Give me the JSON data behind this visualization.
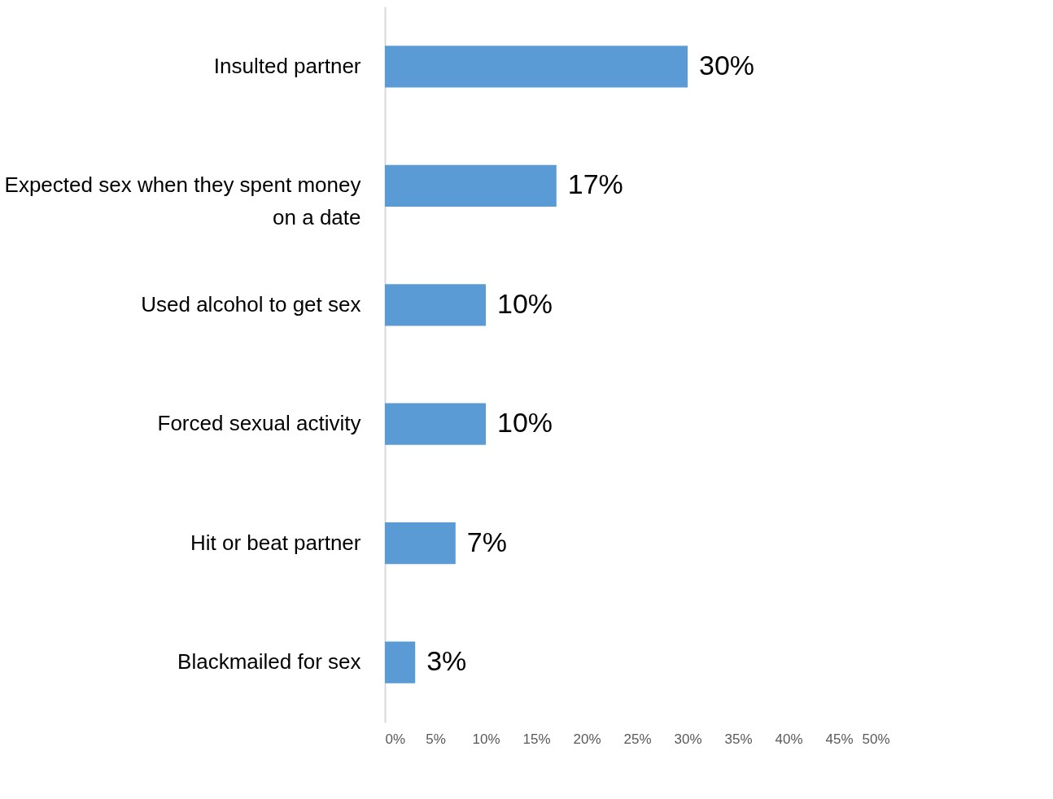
{
  "chart_data": {
    "type": "bar",
    "orientation": "horizontal",
    "categories": [
      "Insulted partner",
      "Expected sex when they spent money on a date",
      "Used alcohol to get sex",
      "Forced sexual activity",
      "Hit or beat partner",
      "Blackmailed for sex"
    ],
    "values": [
      30,
      17,
      10,
      10,
      7,
      3
    ],
    "value_labels": [
      "30%",
      "17%",
      "10%",
      "10%",
      "7%",
      "3%"
    ],
    "color": "#5b9bd5",
    "xlim": [
      0,
      50
    ],
    "xticks": [
      {
        "value": 0,
        "label": "0%"
      },
      {
        "value": 5,
        "label": "5%"
      },
      {
        "value": 10,
        "label": "10%"
      },
      {
        "value": 15,
        "label": "15%"
      },
      {
        "value": 20,
        "label": "20%"
      },
      {
        "value": 25,
        "label": "25%"
      },
      {
        "value": 30,
        "label": "30%"
      },
      {
        "value": 35,
        "label": "35%"
      },
      {
        "value": 40,
        "label": "40%"
      },
      {
        "value": 45,
        "label": "45%"
      },
      {
        "value": 50,
        "label": "50%"
      }
    ],
    "grid": false,
    "legend": false
  }
}
